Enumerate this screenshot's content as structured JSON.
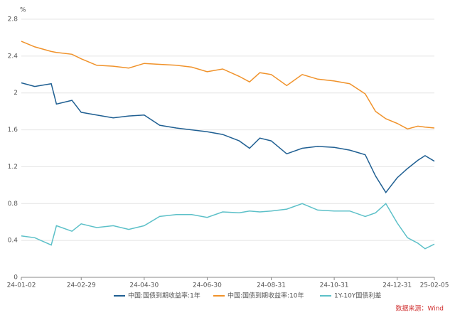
{
  "chart_data": {
    "type": "line",
    "y_label": "%",
    "source": "数据来源：Wind",
    "x": [
      "24-01-02",
      "24-01-15",
      "24-01-31",
      "24-02-05",
      "24-02-20",
      "24-02-29",
      "24-03-15",
      "24-03-31",
      "24-04-15",
      "24-04-30",
      "24-05-15",
      "24-05-31",
      "24-06-15",
      "24-06-30",
      "24-07-15",
      "24-07-31",
      "24-08-10",
      "24-08-20",
      "24-08-31",
      "24-09-15",
      "24-09-30",
      "24-10-15",
      "24-10-31",
      "24-11-15",
      "24-11-30",
      "24-12-10",
      "24-12-20",
      "24-12-31",
      "25-01-10",
      "25-01-20",
      "25-01-27",
      "25-02-05"
    ],
    "xlim": [
      "24-01-02",
      "25-02-05"
    ],
    "xticks": [
      "24-01-02",
      "24-02-29",
      "24-04-30",
      "24-06-30",
      "24-08-31",
      "24-10-31",
      "24-12-31",
      "25-02-05"
    ],
    "series": [
      {
        "name": "中国:国债到期收益率:1年",
        "color": "#1f5f92",
        "values": [
          2.11,
          2.07,
          2.1,
          1.88,
          1.92,
          1.79,
          1.76,
          1.73,
          1.75,
          1.76,
          1.65,
          1.62,
          1.6,
          1.58,
          1.55,
          1.48,
          1.4,
          1.51,
          1.48,
          1.34,
          1.4,
          1.42,
          1.41,
          1.38,
          1.33,
          1.1,
          0.92,
          1.08,
          1.18,
          1.27,
          1.32,
          1.26
        ]
      },
      {
        "name": "中国:国债到期收益率:10年",
        "color": "#f0922a",
        "values": [
          2.56,
          2.5,
          2.45,
          2.44,
          2.42,
          2.37,
          2.3,
          2.29,
          2.27,
          2.32,
          2.31,
          2.3,
          2.28,
          2.23,
          2.26,
          2.18,
          2.12,
          2.22,
          2.2,
          2.08,
          2.2,
          2.15,
          2.13,
          2.1,
          1.99,
          1.8,
          1.72,
          1.67,
          1.61,
          1.64,
          1.63,
          1.62
        ]
      },
      {
        "name": "1Y-10Y国债利差",
        "color": "#5cc0c8",
        "values": [
          0.45,
          0.43,
          0.35,
          0.56,
          0.5,
          0.58,
          0.54,
          0.56,
          0.52,
          0.56,
          0.66,
          0.68,
          0.68,
          0.65,
          0.71,
          0.7,
          0.72,
          0.71,
          0.72,
          0.74,
          0.8,
          0.73,
          0.72,
          0.72,
          0.66,
          0.7,
          0.8,
          0.59,
          0.43,
          0.37,
          0.31,
          0.36
        ]
      }
    ],
    "ylim": [
      0,
      2.8
    ],
    "yticks": [
      0,
      0.4,
      0.8,
      1.2,
      1.6,
      2,
      2.4,
      2.8
    ],
    "grid": true
  }
}
